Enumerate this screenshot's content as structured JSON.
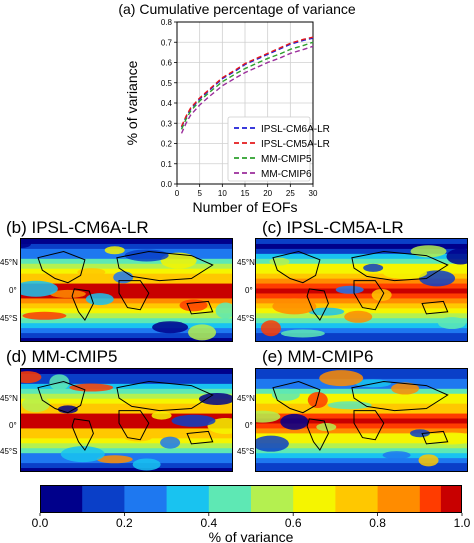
{
  "chart_data": [
    {
      "type": "line",
      "title": "(a) Cumulative percentage of variance",
      "xlabel": "Number of EOFs",
      "ylabel": "% of variance",
      "xlim": [
        0,
        30
      ],
      "ylim": [
        0,
        0.8
      ],
      "xticks": [
        "0",
        "5",
        "10",
        "15",
        "20",
        "25",
        "30"
      ],
      "yticks": [
        "0.0",
        "0.1",
        "0.2",
        "0.3",
        "0.4",
        "0.5",
        "0.6",
        "0.7",
        "0.8"
      ],
      "grid": true,
      "legend_position": "bottom-right",
      "x": [
        1,
        2,
        3,
        5,
        7,
        10,
        13,
        15,
        18,
        20,
        23,
        25,
        28,
        30
      ],
      "series": [
        {
          "name": "IPSL-CM6A-LR",
          "color": "#1f1fd6",
          "values": [
            0.28,
            0.33,
            0.37,
            0.42,
            0.46,
            0.52,
            0.56,
            0.59,
            0.62,
            0.64,
            0.67,
            0.69,
            0.71,
            0.72
          ]
        },
        {
          "name": "IPSL-CM5A-LR",
          "color": "#e41a1c",
          "values": [
            0.285,
            0.335,
            0.375,
            0.425,
            0.465,
            0.525,
            0.565,
            0.595,
            0.625,
            0.645,
            0.675,
            0.695,
            0.715,
            0.725
          ]
        },
        {
          "name": "MM-CMIP5",
          "color": "#2ca02c",
          "values": [
            0.27,
            0.32,
            0.36,
            0.41,
            0.45,
            0.505,
            0.545,
            0.57,
            0.6,
            0.62,
            0.645,
            0.665,
            0.685,
            0.7
          ]
        },
        {
          "name": "MM-CMIP6",
          "color": "#9b2d9b",
          "values": [
            0.25,
            0.3,
            0.34,
            0.39,
            0.43,
            0.485,
            0.525,
            0.55,
            0.58,
            0.6,
            0.625,
            0.645,
            0.665,
            0.68
          ]
        }
      ]
    },
    {
      "type": "heatmap",
      "panels": [
        {
          "title": "(b) IPSL-CM6A-LR"
        },
        {
          "title": "(c) IPSL-CM5A-LR"
        },
        {
          "title": "(d) MM-CMIP5"
        },
        {
          "title": "(e) MM-CMIP6"
        }
      ],
      "lat_ticks": [
        "45°N",
        "0°",
        "45°S"
      ],
      "colorbar": {
        "label": "% of variance",
        "range": [
          0.0,
          1.0
        ],
        "ticks": [
          "0.0",
          "0.2",
          "0.4",
          "0.6",
          "0.8",
          "1.0"
        ],
        "colors": [
          "#00008b",
          "#0a3fc8",
          "#1e78f0",
          "#19c3f0",
          "#5ee8b4",
          "#b4f050",
          "#f5f500",
          "#ffc800",
          "#ff8c00",
          "#ff3c00",
          "#c80000"
        ]
      }
    }
  ]
}
